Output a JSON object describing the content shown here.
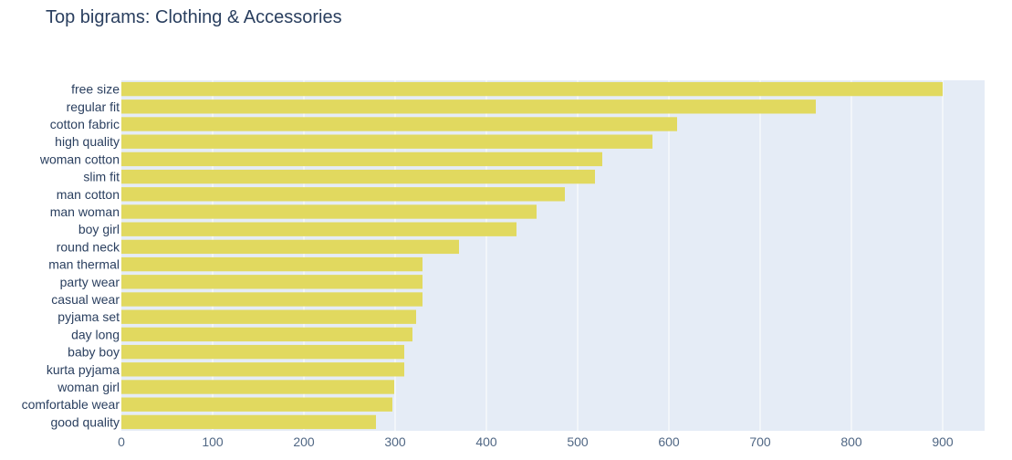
{
  "chart_data": {
    "type": "bar",
    "orientation": "horizontal",
    "title": "Top bigrams: Clothing & Accessories",
    "xlabel": "",
    "ylabel": "",
    "categories": [
      "free size",
      "regular fit",
      "cotton fabric",
      "high quality",
      "woman cotton",
      "slim fit",
      "man cotton",
      "man woman",
      "boy girl",
      "round neck",
      "man thermal",
      "party wear",
      "casual wear",
      "pyjama set",
      "day long",
      "baby boy",
      "kurta pyjama",
      "woman girl",
      "comfortable wear",
      "good quality"
    ],
    "values": [
      900,
      761,
      609,
      582,
      527,
      519,
      486,
      455,
      433,
      370,
      330,
      330,
      330,
      323,
      319,
      310,
      310,
      299,
      297,
      279
    ],
    "xlim": [
      0,
      946
    ],
    "xticks": [
      0,
      100,
      200,
      300,
      400,
      500,
      600,
      700,
      800,
      900
    ],
    "grid": true,
    "colors": {
      "bar": "#e1d95f",
      "plot_bg": "#e5ecf6",
      "grid": "#ffffff",
      "text": "#2a3f5f",
      "tick_text": "#506784"
    }
  }
}
